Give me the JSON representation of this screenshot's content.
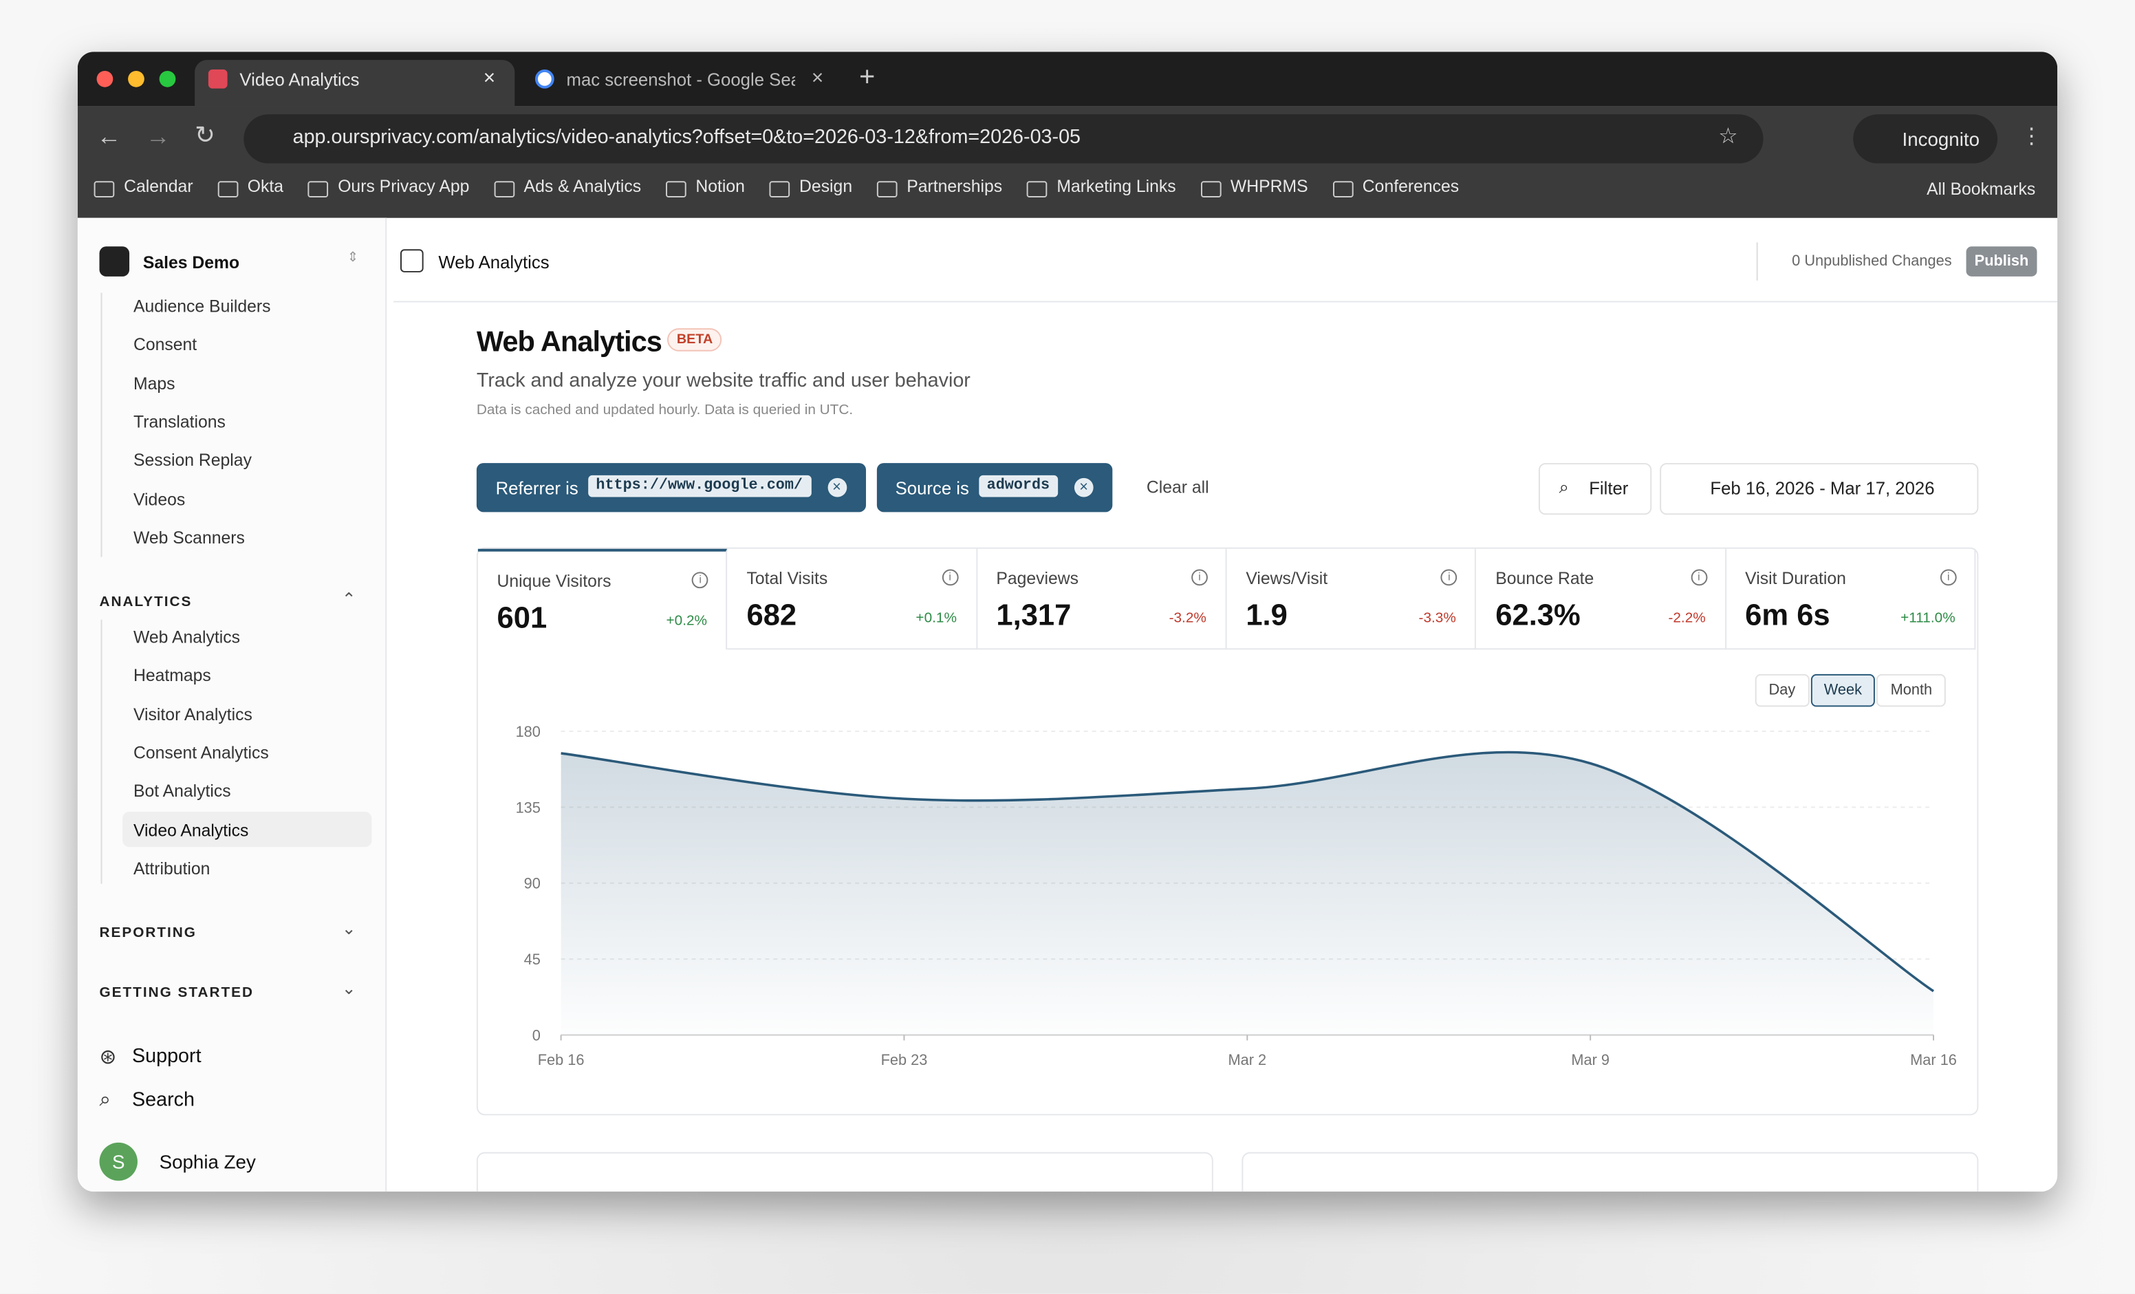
{
  "browser": {
    "tabs": [
      "Video Analytics",
      "mac screenshot - Google Sea"
    ],
    "url": "app.oursprivacy.com/analytics/video-analytics?offset=0&to=2026-03-12&from=2026-03-05",
    "profile": "Incognito",
    "bookmarks": [
      "Calendar",
      "Okta",
      "Ours Privacy App",
      "Ads & Analytics",
      "Notion",
      "Design",
      "Partnerships",
      "Marketing Links",
      "WHPRMS",
      "Conferences"
    ],
    "all_bookmarks": "All Bookmarks"
  },
  "sidebar": {
    "workspace": "Sales Demo",
    "items": [
      "Audience Builders",
      "Consent",
      "Maps",
      "Translations",
      "Session Replay",
      "Videos",
      "Web Scanners"
    ],
    "analytics": {
      "title": "ANALYTICS",
      "items": [
        "Web Analytics",
        "Heatmaps",
        "Visitor Analytics",
        "Consent Analytics",
        "Bot Analytics",
        "Video Analytics",
        "Attribution"
      ]
    },
    "reporting": "REPORTING",
    "getting_started": "GETTING STARTED",
    "support": "Support",
    "search": "Search",
    "user_initial": "S",
    "user_name": "Sophia Zey"
  },
  "header": {
    "breadcrumb": "Web Analytics",
    "unpublished": "0 Unpublished Changes",
    "publish": "Publish"
  },
  "page": {
    "title": "Web Analytics",
    "badge": "BETA",
    "subtitle": "Track and analyze your website traffic and user behavior",
    "note": "Data is cached and updated hourly. Data is queried in UTC."
  },
  "filters": [
    {
      "label": "Referrer is",
      "value": "https://www.google.com/"
    },
    {
      "label": "Source is",
      "value": "adwords"
    }
  ],
  "clear_all": "Clear all",
  "filter_button": "Filter",
  "date_range": "Feb 16, 2026 - Mar 17, 2026",
  "metrics": [
    {
      "label": "Unique Visitors",
      "value": "601",
      "change": "+0.2%"
    },
    {
      "label": "Total Visits",
      "value": "682",
      "change": "+0.1%"
    },
    {
      "label": "Pageviews",
      "value": "1,317",
      "change": "-3.2%"
    },
    {
      "label": "Views/Visit",
      "value": "1.9",
      "change": "-3.3%"
    },
    {
      "label": "Bounce Rate",
      "value": "62.3%",
      "change": "-2.2%"
    },
    {
      "label": "Visit Duration",
      "value": "6m 6s",
      "change": "+111.0%"
    }
  ],
  "granularity": [
    "Day",
    "Week",
    "Month"
  ],
  "chart_data": {
    "type": "area",
    "categories": [
      "Feb 16",
      "Feb 23",
      "Mar 2",
      "Mar 9",
      "Mar 16"
    ],
    "values": [
      167,
      140,
      146,
      161,
      26
    ],
    "color": "#2b5a7a",
    "ylim": [
      0,
      180
    ],
    "yticks": [
      0,
      45,
      90,
      135,
      180
    ],
    "grid": true
  }
}
